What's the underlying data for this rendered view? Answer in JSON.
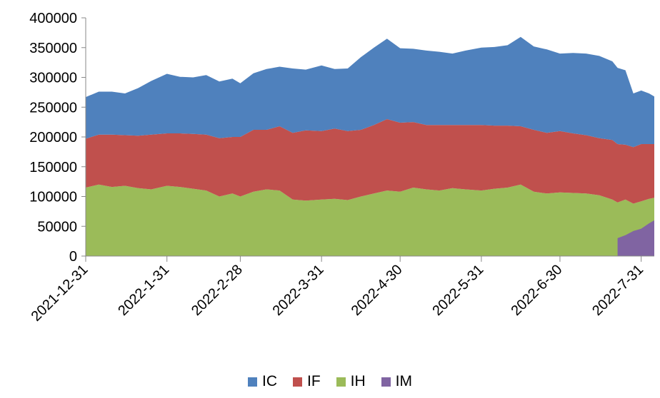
{
  "chart_data": {
    "type": "area",
    "stacked": true,
    "title": "",
    "xlabel": "",
    "ylabel": "",
    "ylim": [
      0,
      400000
    ],
    "yticks": [
      0,
      50000,
      100000,
      150000,
      200000,
      250000,
      300000,
      350000,
      400000
    ],
    "xticks": [
      "2021-12-31",
      "2022-1-31",
      "2022-2-28",
      "2022-3-31",
      "2022-4-30",
      "2022-5-31",
      "2022-6-30",
      "2022-7-31"
    ],
    "xlim": [
      "2021-12-31",
      "2022-8-5"
    ],
    "grid": false,
    "legend": "bottom",
    "x": [
      "2021-12-31",
      "2022-1-5",
      "2022-1-10",
      "2022-1-15",
      "2022-1-20",
      "2022-1-25",
      "2022-1-31",
      "2022-2-5",
      "2022-2-10",
      "2022-2-15",
      "2022-2-20",
      "2022-2-25",
      "2022-2-28",
      "2022-3-5",
      "2022-3-10",
      "2022-3-15",
      "2022-3-20",
      "2022-3-25",
      "2022-3-31",
      "2022-4-5",
      "2022-4-10",
      "2022-4-15",
      "2022-4-20",
      "2022-4-25",
      "2022-4-30",
      "2022-5-5",
      "2022-5-10",
      "2022-5-15",
      "2022-5-20",
      "2022-5-25",
      "2022-5-31",
      "2022-6-5",
      "2022-6-10",
      "2022-6-15",
      "2022-6-20",
      "2022-6-25",
      "2022-6-30",
      "2022-7-5",
      "2022-7-10",
      "2022-7-15",
      "2022-7-20",
      "2022-7-22",
      "2022-7-25",
      "2022-7-28",
      "2022-7-31",
      "2022-8-3",
      "2022-8-5"
    ],
    "series": [
      {
        "name": "IH",
        "color": "#9BBB59",
        "values": [
          115000,
          120000,
          116000,
          118000,
          114000,
          112000,
          118000,
          116000,
          113000,
          110000,
          100000,
          105000,
          100000,
          108000,
          112000,
          110000,
          95000,
          93000,
          95000,
          96000,
          94000,
          100000,
          105000,
          110000,
          108000,
          115000,
          112000,
          110000,
          114000,
          112000,
          110000,
          113000,
          115000,
          120000,
          108000,
          105000,
          107000,
          106000,
          105000,
          102000,
          95000,
          90000,
          95000,
          88000,
          92000,
          96000,
          98000
        ]
      },
      {
        "name": "IF",
        "color": "#C0504D",
        "values": [
          82000,
          84000,
          88000,
          85000,
          88000,
          92000,
          88000,
          90000,
          92000,
          94000,
          98000,
          95000,
          100000,
          104000,
          100000,
          108000,
          112000,
          118000,
          115000,
          118000,
          116000,
          112000,
          115000,
          120000,
          116000,
          110000,
          108000,
          110000,
          106000,
          108000,
          110000,
          106000,
          104000,
          98000,
          104000,
          102000,
          103000,
          100000,
          98000,
          96000,
          100000,
          98000,
          92000,
          95000,
          96000,
          92000,
          90000
        ]
      },
      {
        "name": "IC",
        "color": "#4F81BD",
        "values": [
          70000,
          72000,
          72000,
          70000,
          80000,
          90000,
          100000,
          95000,
          95000,
          100000,
          95000,
          98000,
          90000,
          95000,
          102000,
          100000,
          108000,
          102000,
          110000,
          100000,
          105000,
          122000,
          130000,
          135000,
          125000,
          123000,
          125000,
          123000,
          120000,
          125000,
          130000,
          132000,
          135000,
          150000,
          140000,
          140000,
          130000,
          135000,
          137000,
          138000,
          132000,
          128000,
          125000,
          90000,
          90000,
          85000,
          80000
        ]
      },
      {
        "name": "IM",
        "color": "#8064A2",
        "values": [
          0,
          0,
          0,
          0,
          0,
          0,
          0,
          0,
          0,
          0,
          0,
          0,
          0,
          0,
          0,
          0,
          0,
          0,
          0,
          0,
          0,
          0,
          0,
          0,
          0,
          0,
          0,
          0,
          0,
          0,
          0,
          0,
          0,
          0,
          0,
          0,
          0,
          0,
          0,
          0,
          0,
          30000,
          35000,
          42000,
          46000,
          55000,
          60000
        ]
      }
    ]
  }
}
